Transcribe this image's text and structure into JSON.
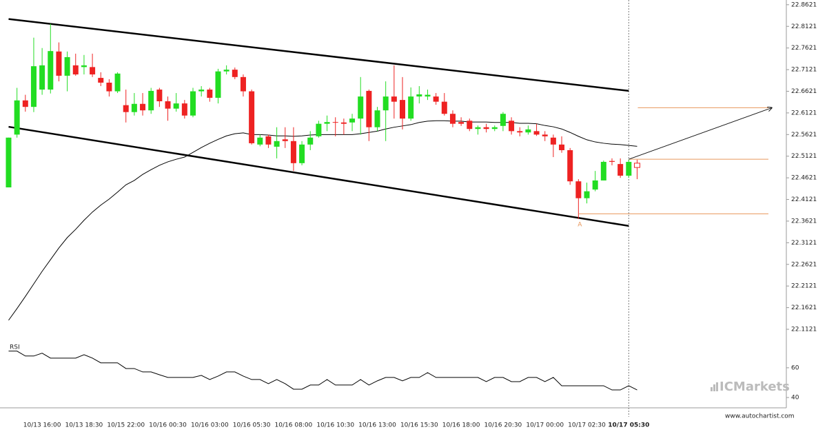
{
  "chart_data": {
    "type": "candlestick",
    "categories": [
      null,
      null,
      null,
      null,
      "10/13 16:00",
      null,
      null,
      null,
      null,
      "10/13 18:30",
      null,
      null,
      null,
      null,
      "10/15 22:00",
      null,
      null,
      null,
      null,
      "10/16 00:30",
      null,
      null,
      null,
      null,
      "10/16 03:00",
      null,
      null,
      null,
      null,
      "10/16 05:30",
      null,
      null,
      null,
      null,
      "10/16 08:00",
      null,
      null,
      null,
      null,
      "10/16 10:30",
      null,
      null,
      null,
      null,
      "10/16 13:00",
      null,
      null,
      null,
      null,
      "10/16 15:30",
      null,
      null,
      null,
      null,
      "10/16 18:00",
      null,
      null,
      null,
      null,
      "10/16 20:30",
      null,
      null,
      null,
      null,
      "10/17 00:00",
      null,
      null,
      null,
      null,
      "10/17 02:30",
      null,
      null,
      null,
      null,
      "10/17 05:30",
      null
    ],
    "open": [
      22.44,
      22.562,
      22.641,
      22.626,
      22.666,
      22.666,
      22.754,
      22.698,
      22.722,
      22.718,
      22.718,
      22.693,
      22.682,
      22.662,
      22.63,
      22.614,
      22.633,
      22.618,
      22.666,
      22.639,
      22.622,
      22.634,
      22.606,
      22.662,
      22.666,
      22.647,
      22.708,
      22.712,
      22.695,
      22.662,
      22.539,
      22.558,
      22.534,
      22.551,
      22.547,
      22.496,
      22.539,
      22.558,
      22.587,
      22.591,
      22.59,
      22.59,
      22.599,
      22.663,
      22.579,
      22.618,
      22.65,
      22.642,
      22.599,
      22.65,
      22.65,
      22.65,
      22.638,
      22.61,
      22.591,
      22.594,
      22.575,
      22.579,
      22.575,
      22.582,
      22.594,
      22.57,
      22.567,
      22.57,
      22.562,
      22.555,
      22.539,
      22.526,
      22.454,
      22.415,
      22.435,
      22.456,
      22.501,
      22.494,
      22.467,
      22.496
    ],
    "high": [
      22.555,
      22.67,
      22.654,
      22.786,
      22.762,
      22.818,
      22.775,
      22.754,
      22.749,
      22.746,
      22.749,
      22.706,
      22.69,
      22.706,
      22.666,
      22.658,
      22.658,
      22.67,
      22.67,
      22.65,
      22.658,
      22.642,
      22.67,
      22.674,
      22.67,
      22.714,
      22.722,
      22.717,
      22.701,
      22.666,
      22.562,
      22.562,
      22.579,
      22.579,
      22.579,
      22.547,
      22.57,
      22.594,
      22.606,
      22.602,
      22.599,
      22.61,
      22.695,
      22.666,
      22.626,
      22.685,
      22.722,
      22.695,
      22.671,
      22.674,
      22.666,
      22.658,
      22.658,
      22.618,
      22.602,
      22.599,
      22.583,
      22.587,
      22.583,
      22.614,
      22.602,
      22.579,
      22.583,
      22.587,
      22.57,
      22.562,
      22.558,
      22.531,
      22.459,
      22.451,
      22.478,
      22.502,
      22.507,
      22.507,
      22.504,
      22.504
    ],
    "low": [
      22.44,
      22.555,
      22.615,
      22.614,
      22.654,
      22.657,
      22.685,
      22.662,
      22.698,
      22.701,
      22.695,
      22.674,
      22.65,
      22.658,
      22.59,
      22.606,
      22.606,
      22.61,
      22.626,
      22.594,
      22.615,
      22.599,
      22.602,
      22.65,
      22.638,
      22.634,
      22.701,
      22.69,
      22.65,
      22.539,
      22.535,
      22.531,
      22.507,
      22.531,
      22.478,
      22.491,
      22.526,
      22.555,
      22.57,
      22.558,
      22.562,
      22.57,
      22.562,
      22.547,
      22.57,
      22.547,
      22.599,
      22.574,
      22.594,
      22.634,
      22.642,
      22.631,
      22.606,
      22.579,
      22.582,
      22.57,
      22.562,
      22.567,
      22.57,
      22.57,
      22.562,
      22.558,
      22.562,
      22.559,
      22.547,
      22.51,
      22.52,
      22.446,
      22.367,
      22.403,
      22.431,
      22.456,
      22.491,
      22.462,
      22.462,
      22.459
    ],
    "close": [
      22.555,
      22.641,
      22.626,
      22.72,
      22.722,
      22.755,
      22.698,
      22.741,
      22.701,
      22.722,
      22.701,
      22.682,
      22.662,
      22.703,
      22.614,
      22.633,
      22.618,
      22.663,
      22.639,
      22.622,
      22.634,
      22.606,
      22.662,
      22.666,
      22.647,
      22.708,
      22.712,
      22.695,
      22.662,
      22.542,
      22.555,
      22.539,
      22.547,
      22.547,
      22.496,
      22.539,
      22.555,
      22.587,
      22.591,
      22.59,
      22.587,
      22.599,
      22.65,
      22.579,
      22.618,
      22.65,
      22.638,
      22.599,
      22.65,
      22.655,
      22.654,
      22.638,
      22.61,
      22.587,
      22.587,
      22.575,
      22.579,
      22.575,
      22.579,
      22.61,
      22.57,
      22.567,
      22.574,
      22.562,
      22.558,
      22.539,
      22.526,
      22.454,
      22.415,
      22.431,
      22.456,
      22.499,
      22.499,
      22.467,
      22.499,
      22.486
    ],
    "up_color": "#22dd22",
    "down_color": "#ee2222",
    "ylim": [
      22.093,
      22.873
    ],
    "yticks": [
      22.8621,
      22.8121,
      22.7621,
      22.7121,
      22.6621,
      22.6121,
      22.5621,
      22.5121,
      22.4621,
      22.4121,
      22.3621,
      22.3121,
      22.2621,
      22.2121,
      22.1621,
      22.1121
    ],
    "moving_average": {
      "color": "#000000",
      "values": [
        22.133,
        22.16,
        22.188,
        22.217,
        22.246,
        22.273,
        22.3,
        22.324,
        22.343,
        22.364,
        22.383,
        22.399,
        22.413,
        22.429,
        22.446,
        22.456,
        22.47,
        22.481,
        22.491,
        22.499,
        22.505,
        22.51,
        22.521,
        22.532,
        22.542,
        22.551,
        22.559,
        22.564,
        22.566,
        22.562,
        22.562,
        22.561,
        22.559,
        22.559,
        22.558,
        22.559,
        22.561,
        22.562,
        22.562,
        22.562,
        22.562,
        22.562,
        22.564,
        22.567,
        22.57,
        22.575,
        22.579,
        22.582,
        22.585,
        22.59,
        22.593,
        22.594,
        22.594,
        22.593,
        22.593,
        22.591,
        22.591,
        22.591,
        22.59,
        22.59,
        22.59,
        22.588,
        22.588,
        22.587,
        22.583,
        22.58,
        22.575,
        22.567,
        22.558,
        22.55,
        22.545,
        22.542,
        22.54,
        22.539,
        22.537,
        22.535
      ]
    },
    "channel": {
      "color": "#000000",
      "upper": [
        22.829,
        22.663
      ],
      "lower": [
        22.58,
        22.351
      ]
    },
    "levels": {
      "color": "#e8965a",
      "values": [
        22.624,
        22.505,
        22.379
      ]
    },
    "pattern_point": "A",
    "rsi": {
      "label": "RSI",
      "ylim": [
        34,
        78
      ],
      "yticks": [
        60,
        40
      ],
      "values": [
        71.2,
        71.2,
        67.9,
        67.9,
        69.8,
        66.5,
        66.5,
        66.5,
        66.5,
        68.8,
        66.5,
        63.3,
        63.3,
        63.3,
        59.5,
        59.5,
        57.2,
        57.2,
        55.3,
        53.5,
        53.5,
        53.5,
        53.5,
        54.9,
        52.1,
        54.4,
        57.2,
        57.2,
        54.4,
        52.1,
        52.1,
        49.3,
        52.1,
        49.3,
        45.6,
        45.6,
        48.4,
        48.4,
        52.1,
        48.4,
        48.4,
        48.4,
        52.1,
        48.4,
        51.2,
        53.5,
        53.5,
        51.2,
        53.5,
        53.5,
        56.7,
        53.5,
        53.5,
        53.5,
        53.5,
        53.5,
        53.5,
        50.7,
        53.5,
        53.5,
        50.7,
        50.7,
        53.5,
        53.5,
        50.7,
        53.5,
        47.9,
        47.9,
        47.9,
        47.9,
        47.9,
        47.9,
        45.1,
        45.1,
        47.9,
        45.1
      ]
    },
    "watermark": "ICMarkets",
    "footer": "www.autochartist.com"
  }
}
